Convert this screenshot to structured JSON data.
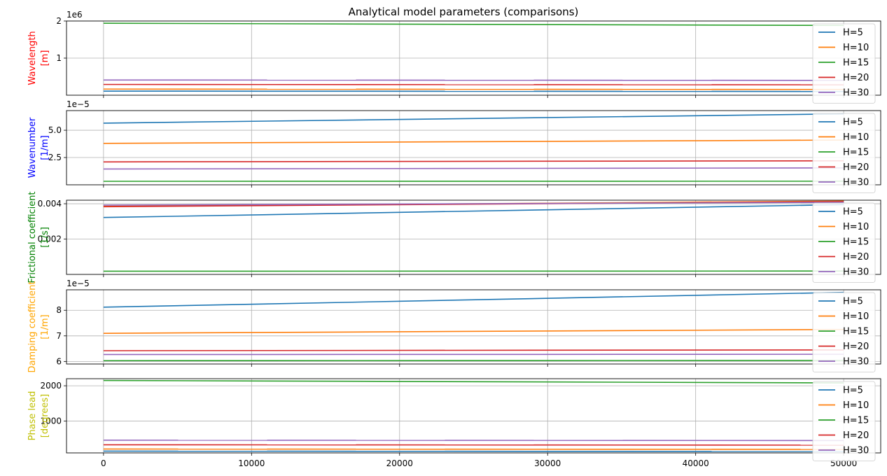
{
  "chart_data": {
    "type": "line",
    "title": "Analytical model parameters (comparisons)",
    "xlim": [
      -2500,
      52500
    ],
    "x_ticks": [
      0,
      10000,
      20000,
      30000,
      40000,
      50000
    ],
    "x_tick_labels": [
      "0",
      "10000",
      "20000",
      "30000",
      "40000",
      "50000"
    ],
    "grid": true,
    "legend_placement": "right",
    "series_names": [
      "H=5",
      "H=10",
      "H=15",
      "H=20",
      "H=30"
    ],
    "series_colors": [
      "#1f77b4",
      "#ff7f0e",
      "#2ca02c",
      "#d62728",
      "#9467bd"
    ],
    "panels": [
      {
        "ylabel": [
          "Wavelength",
          "[m]"
        ],
        "ylabel_color": "#ff0000",
        "offset_text": "1e6",
        "ylim": [
          0,
          2.0
        ],
        "y_ticks": [
          1,
          2
        ],
        "y_tick_labels": [
          "1",
          "2"
        ],
        "series": [
          {
            "name": "H=5",
            "x": [
              0,
              50000
            ],
            "y": [
              0.11,
              0.1
            ]
          },
          {
            "name": "H=10",
            "x": [
              0,
              50000
            ],
            "y": [
              0.165,
              0.155
            ]
          },
          {
            "name": "H=15",
            "x": [
              0,
              50000
            ],
            "y": [
              1.94,
              1.88
            ]
          },
          {
            "name": "H=20",
            "x": [
              0,
              50000
            ],
            "y": [
              0.29,
              0.28
            ]
          },
          {
            "name": "H=30",
            "x": [
              0,
              50000
            ],
            "y": [
              0.41,
              0.4
            ]
          }
        ]
      },
      {
        "ylabel": [
          "Wavenumber",
          "[1/m]"
        ],
        "ylabel_color": "#0000ff",
        "offset_text": "1e−5",
        "ylim": [
          0,
          6.8
        ],
        "y_ticks": [
          2.5,
          5.0
        ],
        "y_tick_labels": [
          "2.5",
          "5.0"
        ],
        "series": [
          {
            "name": "H=5",
            "x": [
              0,
              50000
            ],
            "y": [
              5.65,
              6.5
            ]
          },
          {
            "name": "H=10",
            "x": [
              0,
              50000
            ],
            "y": [
              3.8,
              4.1
            ]
          },
          {
            "name": "H=15",
            "x": [
              0,
              50000
            ],
            "y": [
              0.32,
              0.33
            ]
          },
          {
            "name": "H=20",
            "x": [
              0,
              50000
            ],
            "y": [
              2.1,
              2.2
            ]
          },
          {
            "name": "H=30",
            "x": [
              0,
              50000
            ],
            "y": [
              1.45,
              1.55
            ]
          }
        ]
      },
      {
        "ylabel": [
          "Frictional coefficient",
          "[1/s]"
        ],
        "ylabel_color": "#008000",
        "offset_text": "",
        "ylim": [
          0,
          0.0042
        ],
        "y_ticks": [
          0.002,
          0.004
        ],
        "y_tick_labels": [
          "0.002",
          "0.004"
        ],
        "series": [
          {
            "name": "H=5",
            "x": [
              0,
              50000
            ],
            "y": [
              0.00322,
              0.00395
            ]
          },
          {
            "name": "H=10",
            "x": [
              0,
              50000
            ],
            "y": [
              0.00385,
              0.00415
            ]
          },
          {
            "name": "H=15",
            "x": [
              0,
              50000
            ],
            "y": [
              0.00018,
              0.00019
            ]
          },
          {
            "name": "H=20",
            "x": [
              0,
              50000
            ],
            "y": [
              0.00383,
              0.00412
            ]
          },
          {
            "name": "H=30",
            "x": [
              0,
              50000
            ],
            "y": [
              0.00392,
              0.00408
            ]
          }
        ]
      },
      {
        "ylabel": [
          "Damping coefficient",
          "[1/m]"
        ],
        "ylabel_color": "#ffa500",
        "offset_text": "1e−5",
        "ylim": [
          5.9,
          8.8
        ],
        "y_ticks": [
          6,
          7,
          8
        ],
        "y_tick_labels": [
          "6",
          "7",
          "8"
        ],
        "series": [
          {
            "name": "H=5",
            "x": [
              0,
              50000
            ],
            "y": [
              8.12,
              8.7
            ]
          },
          {
            "name": "H=10",
            "x": [
              0,
              50000
            ],
            "y": [
              7.1,
              7.25
            ]
          },
          {
            "name": "H=15",
            "x": [
              0,
              50000
            ],
            "y": [
              6.03,
              6.04
            ]
          },
          {
            "name": "H=20",
            "x": [
              0,
              50000
            ],
            "y": [
              6.42,
              6.45
            ]
          },
          {
            "name": "H=30",
            "x": [
              0,
              50000
            ],
            "y": [
              6.27,
              6.28
            ]
          }
        ]
      },
      {
        "ylabel": [
          "Phase lead",
          "[degrees]"
        ],
        "ylabel_color": "#bfbf00",
        "offset_text": "",
        "ylim": [
          100,
          2200
        ],
        "y_ticks": [
          1000,
          2000
        ],
        "y_tick_labels": [
          "1000",
          "2000"
        ],
        "series": [
          {
            "name": "H=5",
            "x": [
              0,
              50000
            ],
            "y": [
              150,
              140
            ]
          },
          {
            "name": "H=10",
            "x": [
              0,
              50000
            ],
            "y": [
              210,
              200
            ]
          },
          {
            "name": "H=15",
            "x": [
              0,
              50000
            ],
            "y": [
              2150,
              2080
            ]
          },
          {
            "name": "H=20",
            "x": [
              0,
              50000
            ],
            "y": [
              330,
              320
            ]
          },
          {
            "name": "H=30",
            "x": [
              0,
              50000
            ],
            "y": [
              460,
              450
            ]
          }
        ]
      }
    ]
  }
}
